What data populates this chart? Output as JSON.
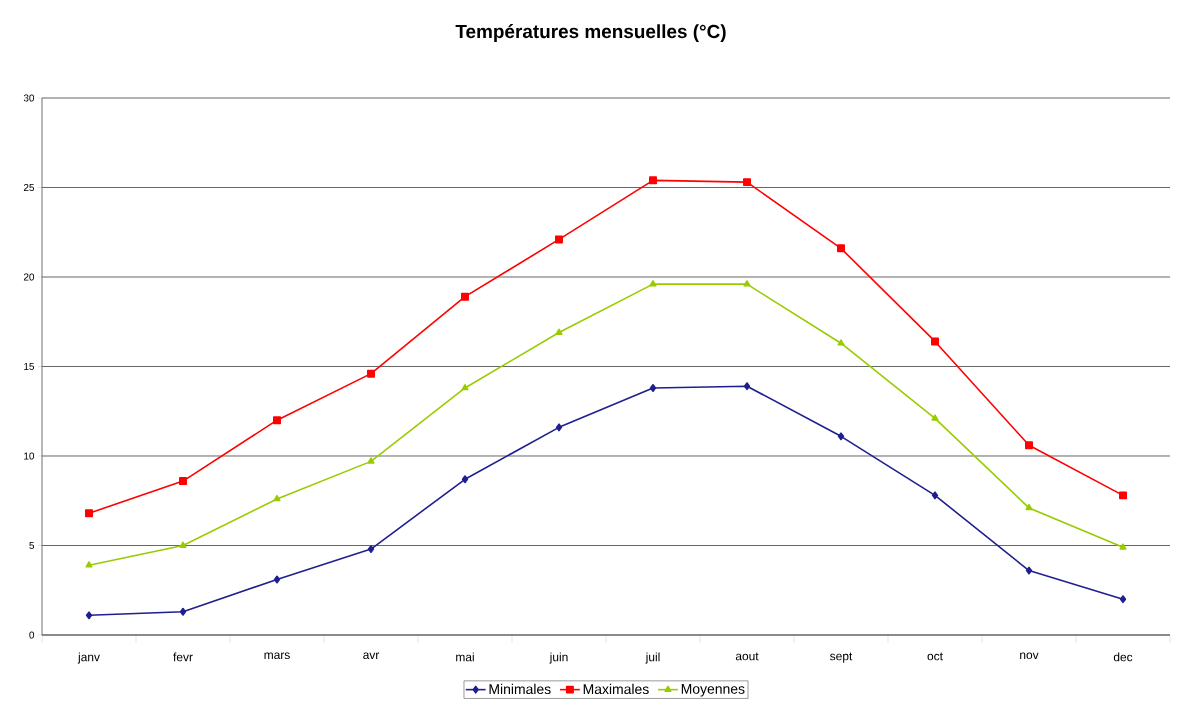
{
  "chart_data": {
    "type": "line",
    "title": "Températures mensuelles (°C)",
    "categories": [
      "janv",
      "fevr",
      "mars",
      "avr",
      "mai",
      "juin",
      "juil",
      "aout",
      "sept",
      "oct",
      "nov",
      "dec"
    ],
    "series": [
      {
        "name": "Minimales",
        "color": "#1f1f8f",
        "marker": "diamond",
        "values": [
          1.1,
          1.3,
          3.1,
          4.8,
          8.7,
          11.6,
          13.8,
          13.9,
          11.1,
          7.8,
          3.6,
          2.0
        ]
      },
      {
        "name": "Maximales",
        "color": "#ff0000",
        "marker": "square",
        "values": [
          6.8,
          8.6,
          12.0,
          14.6,
          18.9,
          22.1,
          25.4,
          25.3,
          21.6,
          16.4,
          10.6,
          7.8
        ]
      },
      {
        "name": "Moyennes",
        "color": "#99cc00",
        "marker": "triangle",
        "values": [
          3.9,
          5.0,
          7.6,
          9.7,
          13.8,
          16.9,
          19.6,
          19.6,
          16.3,
          12.1,
          7.1,
          4.9
        ]
      }
    ],
    "ylim": [
      0,
      30
    ],
    "yticks": [
      0,
      5,
      10,
      15,
      20,
      25,
      30
    ],
    "grid": "y",
    "legend": "bottom",
    "line_style": "solid"
  }
}
